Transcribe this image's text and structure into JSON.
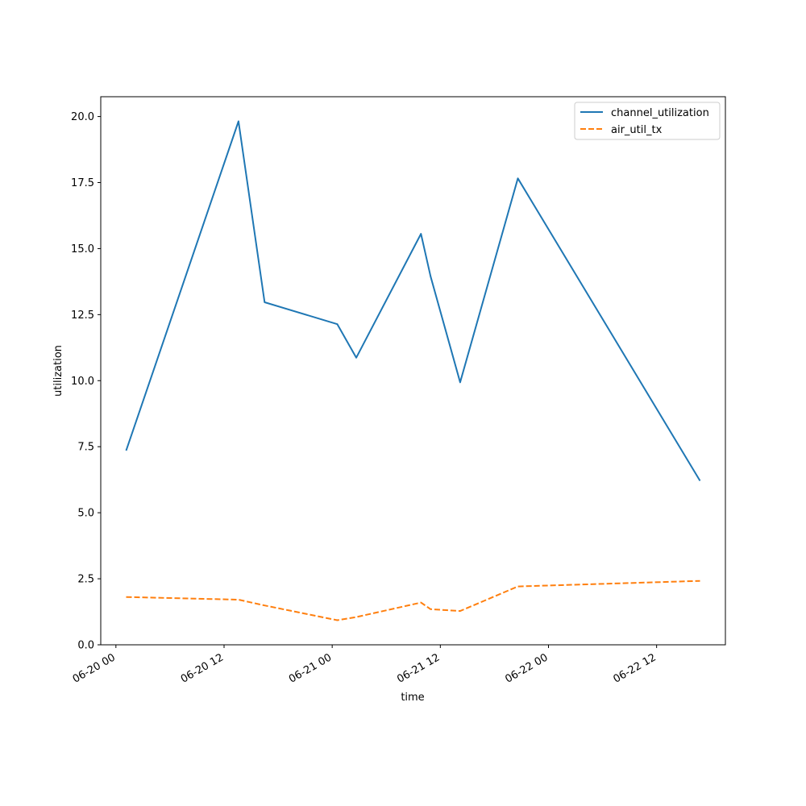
{
  "chart_data": {
    "type": "line",
    "title": "",
    "xlabel": "time",
    "ylabel": "utilization",
    "xlim": [
      "2023-06-19T22:19:00",
      "2023-06-22T19:38:00"
    ],
    "ylim": [
      0,
      20.75
    ],
    "x_ticks": [
      {
        "t": "2023-06-20T00:00:00",
        "label": "06-20 00"
      },
      {
        "t": "2023-06-20T12:00:00",
        "label": "06-20 12"
      },
      {
        "t": "2023-06-21T00:00:00",
        "label": "06-21 00"
      },
      {
        "t": "2023-06-21T12:00:00",
        "label": "06-21 12"
      },
      {
        "t": "2023-06-22T00:00:00",
        "label": "06-22 00"
      },
      {
        "t": "2023-06-22T12:00:00",
        "label": "06-22 12"
      }
    ],
    "y_ticks": [
      {
        "v": 0,
        "label": "0.0"
      },
      {
        "v": 2.5,
        "label": "2.5"
      },
      {
        "v": 5,
        "label": "5.0"
      },
      {
        "v": 7.5,
        "label": "7.5"
      },
      {
        "v": 10,
        "label": "10.0"
      },
      {
        "v": 12.5,
        "label": "12.5"
      },
      {
        "v": 15,
        "label": "15.0"
      },
      {
        "v": 17.5,
        "label": "17.5"
      },
      {
        "v": 20,
        "label": "20.0"
      }
    ],
    "grid": false,
    "legend_position": "top-right",
    "series": [
      {
        "name": "channel_utilization",
        "color": "#1f77b4",
        "style": "solid",
        "points": [
          {
            "t": "2023-06-20T01:08:00",
            "y": 7.35
          },
          {
            "t": "2023-06-20T13:36:00",
            "y": 19.82
          },
          {
            "t": "2023-06-20T16:30:00",
            "y": 12.97
          },
          {
            "t": "2023-06-21T00:34:00",
            "y": 12.14
          },
          {
            "t": "2023-06-21T02:40:00",
            "y": 10.87
          },
          {
            "t": "2023-06-21T09:51:00",
            "y": 15.56
          },
          {
            "t": "2023-06-21T10:55:00",
            "y": 13.95
          },
          {
            "t": "2023-06-21T14:12:00",
            "y": 9.94
          },
          {
            "t": "2023-06-21T20:36:00",
            "y": 17.66
          },
          {
            "t": "2023-06-22T16:49:00",
            "y": 6.21
          }
        ]
      },
      {
        "name": "air_util_tx",
        "color": "#ff7f0e",
        "style": "dashed",
        "points": [
          {
            "t": "2023-06-20T01:08:00",
            "y": 1.81
          },
          {
            "t": "2023-06-20T13:36:00",
            "y": 1.71
          },
          {
            "t": "2023-06-20T16:30:00",
            "y": 1.49
          },
          {
            "t": "2023-06-21T00:34:00",
            "y": 0.93
          },
          {
            "t": "2023-06-21T02:40:00",
            "y": 1.05
          },
          {
            "t": "2023-06-21T09:51:00",
            "y": 1.6
          },
          {
            "t": "2023-06-21T10:55:00",
            "y": 1.35
          },
          {
            "t": "2023-06-21T14:12:00",
            "y": 1.28
          },
          {
            "t": "2023-06-21T20:36:00",
            "y": 2.21
          },
          {
            "t": "2023-06-22T16:49:00",
            "y": 2.42
          }
        ]
      }
    ]
  }
}
